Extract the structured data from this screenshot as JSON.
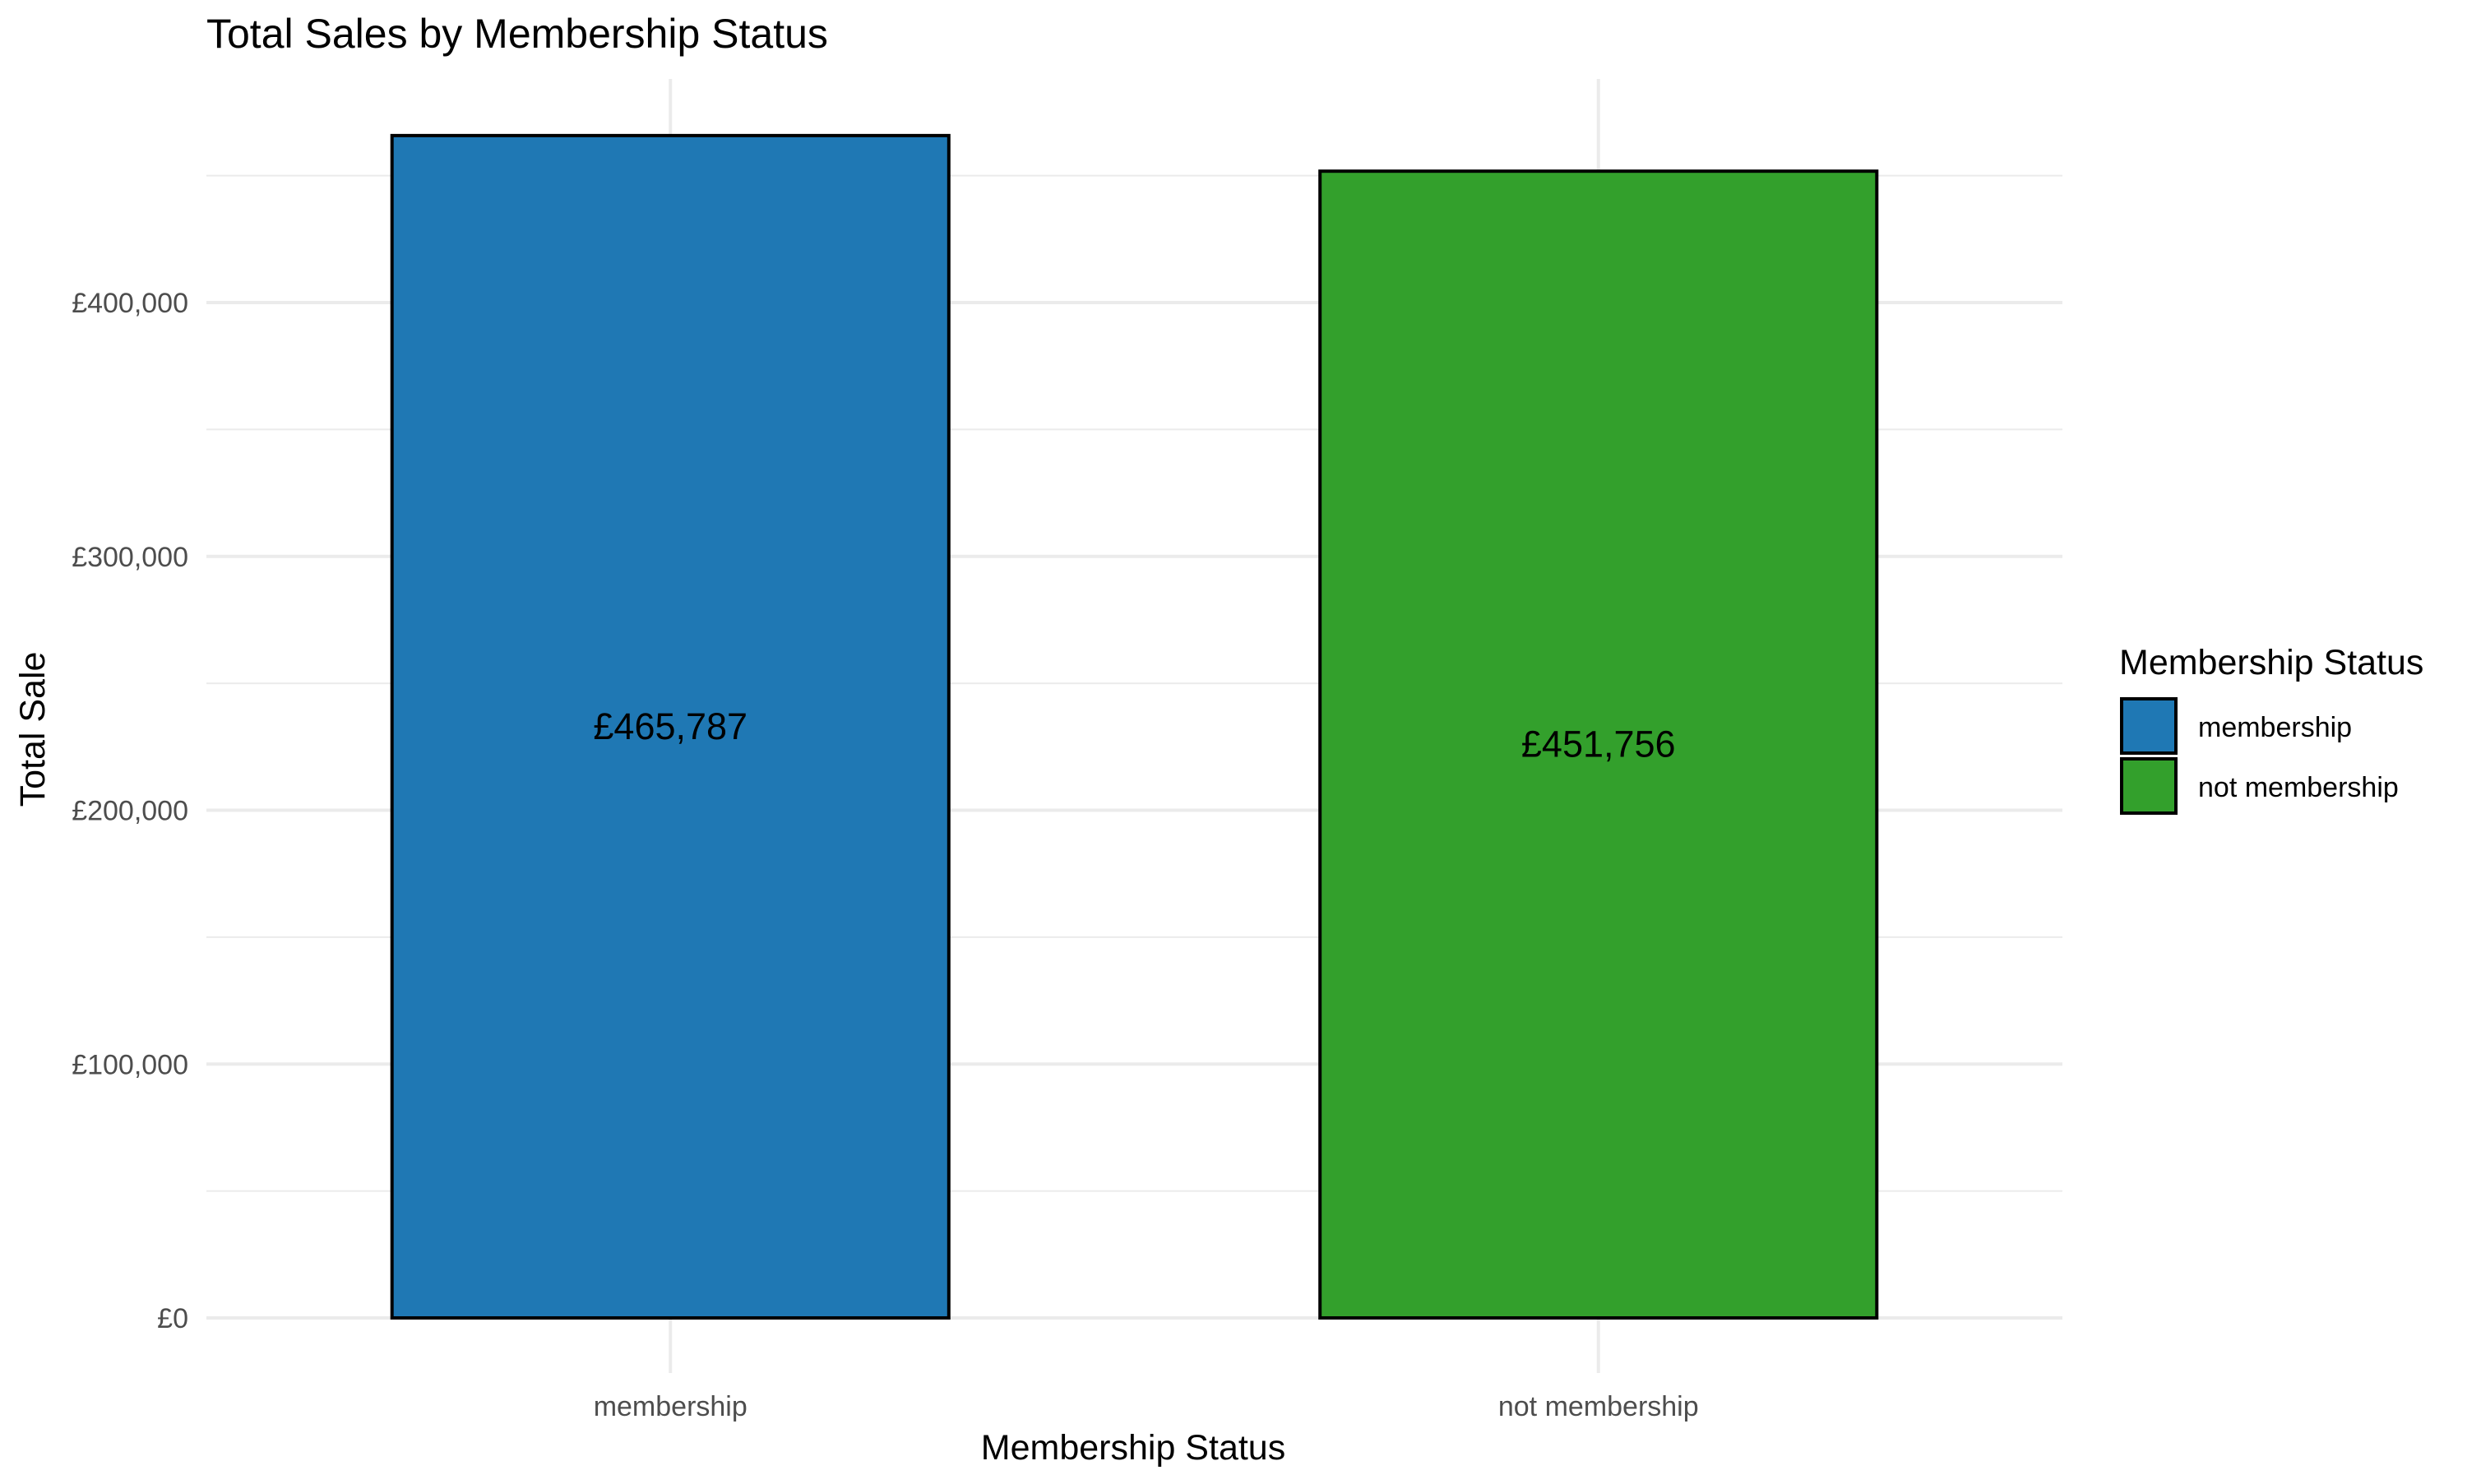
{
  "chart_data": {
    "type": "bar",
    "title": "Total Sales by Membership Status",
    "xlabel": "Membership Status",
    "ylabel": "Total Sale",
    "categories": [
      "membership",
      "not membership"
    ],
    "values": [
      465787,
      451756
    ],
    "value_labels": [
      "£465,787",
      "£451,756"
    ],
    "ylim": [
      0,
      488000
    ],
    "y_ticks": [
      0,
      100000,
      200000,
      300000,
      400000
    ],
    "y_tick_labels": [
      "£0",
      "£100,000",
      "£200,000",
      "£300,000",
      "£400,000"
    ],
    "grid": true,
    "colors": [
      "#1f78b4",
      "#33a02c"
    ],
    "legend": {
      "title": "Membership Status",
      "position": "right",
      "entries": [
        "membership",
        "not membership"
      ]
    }
  }
}
